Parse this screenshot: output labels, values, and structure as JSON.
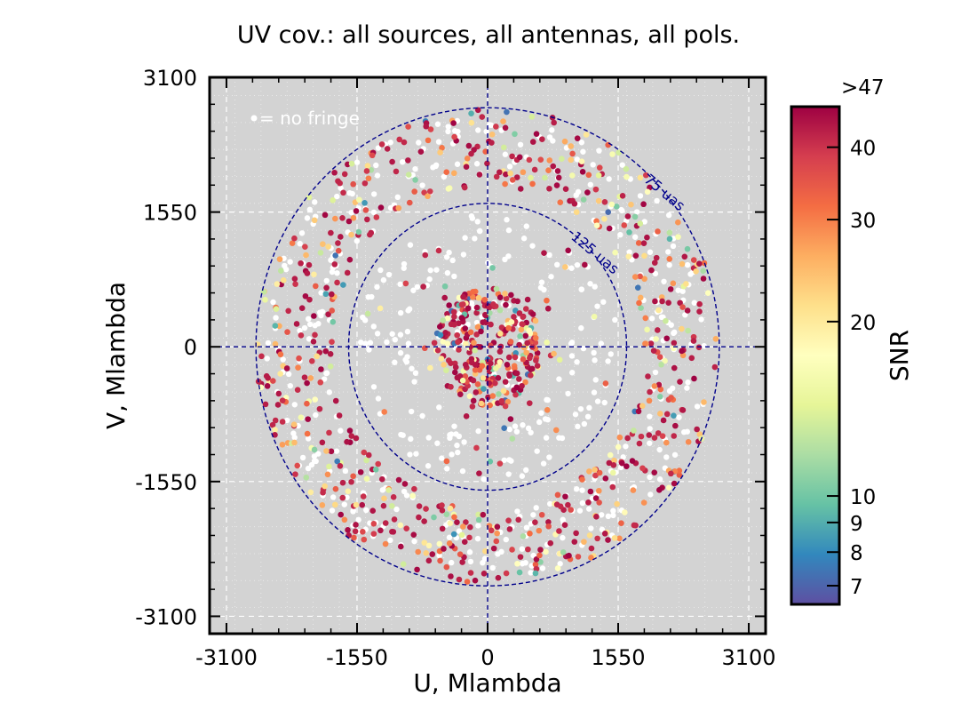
{
  "chart_data": {
    "type": "scatter",
    "title": "UV cov.: all sources, all antennas, all pols.",
    "xlabel": "U, Mlambda",
    "ylabel": "V, Mlambda",
    "xlim": [
      -3300,
      3300
    ],
    "ylim": [
      -3300,
      3100
    ],
    "xticks": [
      -3100,
      -1550,
      0,
      1550,
      3100
    ],
    "yticks": [
      3100,
      1550,
      0,
      -1550,
      -3100
    ],
    "xtick_labels": [
      "-3100",
      "-1550",
      "0",
      "1550",
      "3100"
    ],
    "ytick_labels": [
      "3100",
      "1550",
      "0",
      "-1550",
      "-3100"
    ],
    "grid": true,
    "background": "#d3d3d3",
    "rings": [
      {
        "label": "75 uas",
        "radius": 2750
      },
      {
        "label": "125 uas",
        "radius": 1650
      }
    ],
    "no_fringe_legend": "= no fringe",
    "colorbar": {
      "label": "SNR",
      "cmap": "Spectral_r",
      "scale": "log",
      "range": [
        6.5,
        47
      ],
      "ticks": [
        7,
        8,
        9,
        10,
        20,
        30,
        40
      ],
      "tick_labels": [
        "7",
        "8",
        "9",
        "10",
        "20",
        "30",
        "40"
      ],
      "top_label": ">47",
      "colors": [
        "#5e4fa2",
        "#3288bd",
        "#66c2a5",
        "#abdda4",
        "#e6f598",
        "#ffffbf",
        "#fee08b",
        "#fdae61",
        "#f46d43",
        "#d53e4f",
        "#9e0142"
      ]
    },
    "series": [
      {
        "role": "no-fringe",
        "color": "#ffffff",
        "radius_bands": [
          [
            250,
            600
          ],
          [
            900,
            1200
          ],
          [
            1250,
            1550
          ],
          [
            1900,
            2250
          ],
          [
            2350,
            2650
          ]
        ]
      },
      {
        "role": "detections",
        "color_by": "SNR",
        "radius_bands": [
          [
            0,
            650
          ],
          [
            650,
            1500
          ],
          [
            1850,
            2750
          ]
        ]
      }
    ]
  }
}
